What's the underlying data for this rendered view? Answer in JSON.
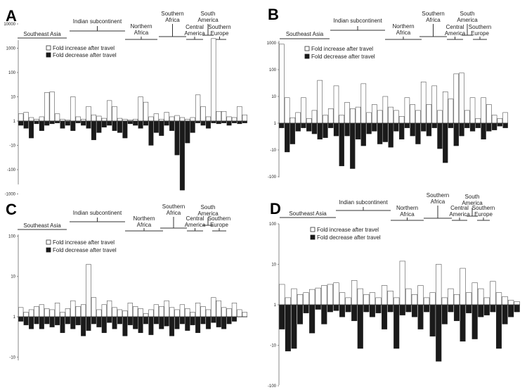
{
  "legend": {
    "increase": "Fold increase after travel",
    "decrease": "Fold decrease after travel"
  },
  "colors": {
    "increase_fill": "#ffffff",
    "decrease_fill": "#1a1a1a",
    "stroke": "#555555"
  },
  "chart_data": [
    {
      "type": "bar",
      "title": "A",
      "yscale": "log-diverging",
      "yticks": [
        "10000",
        "1000",
        "100",
        "10",
        "1",
        "-10",
        "-100",
        "-1000"
      ],
      "regions": [
        "Southeast Asia",
        "Indian subcontinent",
        "Northern Africa",
        "Southern Africa",
        "Central America",
        "South America",
        "Southern Europe"
      ],
      "series": [
        {
          "name": "Fold increase after travel",
          "values": [
            2,
            2.3,
            1.4,
            1.2,
            1.5,
            15,
            16,
            2,
            1.2,
            1.1,
            10,
            1.5,
            1.2,
            4,
            1.8,
            1.6,
            1.3,
            7,
            4,
            1.3,
            1.2,
            1.1,
            1.2,
            10,
            6,
            1.5,
            2,
            1.2,
            2.3,
            1.5,
            1.7,
            1.4,
            1.2,
            1.4,
            12,
            4,
            1.5,
            2500,
            2.5,
            2.5,
            1.5,
            1.4,
            4,
            1.8
          ]
        },
        {
          "name": "Fold decrease after travel",
          "values": [
            -1.5,
            -2,
            -5,
            -1.3,
            -2.5,
            -1.5,
            -1.3,
            -1.2,
            -2,
            -1.5,
            -2.5,
            -1.2,
            -1.5,
            -2,
            -6,
            -3,
            -1.8,
            -1.5,
            -2.5,
            -3,
            -5,
            -1.3,
            -1.5,
            -2,
            -1.5,
            -10,
            -3,
            -4,
            -1.5,
            -2.5,
            -25,
            -700,
            -8,
            -3,
            -1.2,
            -1.5,
            -2,
            -1.2,
            -1.3,
            -1.2,
            -1.5,
            -1.2,
            -1.3,
            -1.2
          ]
        }
      ]
    },
    {
      "type": "bar",
      "title": "B",
      "yscale": "log-diverging",
      "yticks": [
        "1000",
        "100",
        "10",
        "1",
        "-10",
        "-100"
      ],
      "regions": [
        "Southeast Asia",
        "Indian subcontinent",
        "Northern Africa",
        "Southern Africa",
        "Central America",
        "South America",
        "Southern Europe"
      ],
      "series": [
        {
          "name": "Fold increase after travel",
          "values": [
            900,
            9,
            1.6,
            2.5,
            9,
            1.5,
            3,
            40,
            2,
            3.5,
            25,
            2,
            6,
            3.5,
            4,
            30,
            2.5,
            5,
            3,
            10,
            4,
            3,
            1.8,
            9,
            5,
            3,
            35,
            5,
            25,
            3,
            15,
            8,
            70,
            75,
            3,
            9,
            1.5,
            9,
            5,
            2,
            1.5,
            2.5
          ]
        },
        {
          "name": "Fold decrease after travel",
          "values": [
            -1.5,
            -12,
            -6,
            -2,
            -1.5,
            -2,
            -2.5,
            -4,
            -3.5,
            -1.5,
            -3,
            -40,
            -3,
            -50,
            -4,
            -7,
            -2.5,
            -2,
            -6,
            -5,
            -8,
            -2,
            -4,
            -1.5,
            -3,
            -6,
            -2,
            -3,
            -1.5,
            -9,
            -30,
            -1.5,
            -7,
            -3,
            -1.5,
            -2,
            -1.5,
            -4,
            -2,
            -1.8,
            -1.3,
            -1.5
          ]
        }
      ]
    },
    {
      "type": "bar",
      "title": "C",
      "yscale": "log-diverging",
      "yticks": [
        "100",
        "10",
        "1",
        "-10"
      ],
      "regions": [
        "Southeast Asia",
        "Indian subcontinent",
        "Northern Africa",
        "Southern Africa",
        "Central America",
        "South America",
        "Southern Europe"
      ],
      "series": [
        {
          "name": "Fold increase after travel",
          "values": [
            1.7,
            1.3,
            1.5,
            1.8,
            2,
            1.6,
            1.5,
            2.2,
            1.3,
            1.6,
            2.5,
            1.8,
            2,
            20,
            3,
            1.5,
            2,
            2.5,
            1.7,
            1.5,
            1.4,
            2.2,
            1.8,
            1.6,
            1.2,
            1.5,
            2,
            1.8,
            2.5,
            1.7,
            1.5,
            2,
            1.6,
            1.3,
            2.2,
            1.8,
            1.5,
            3,
            2.5,
            1.7,
            1.6,
            2.2,
            1.5,
            1.3
          ]
        },
        {
          "name": "Fold decrease after travel",
          "values": [
            -1.3,
            -1.6,
            -2,
            -1.5,
            -2,
            -1.5,
            -1.8,
            -1.6,
            -2.5,
            -1.5,
            -2,
            -1.6,
            -3,
            -2.2,
            -1.5,
            -1.8,
            -2.5,
            -1.4,
            -2,
            -1.5,
            -3,
            -1.6,
            -2,
            -2.5,
            -1.5,
            -2.8,
            -1.5,
            -2,
            -1.7,
            -3,
            -2,
            -1.5,
            -2.2,
            -1.6,
            -2.5,
            -1.5,
            -2,
            -1.4,
            -1.8,
            -2,
            -1.5,
            -1.3
          ]
        }
      ]
    },
    {
      "type": "bar",
      "title": "D",
      "yscale": "log-diverging",
      "yticks": [
        "100",
        "10",
        "1",
        "-10",
        "-100"
      ],
      "regions": [
        "Southeast Asia",
        "Indian subcontinent",
        "Northern Africa",
        "Southern Africa",
        "Central America",
        "South America",
        "Southern Europe"
      ],
      "series": [
        {
          "name": "Fold increase after travel",
          "values": [
            3.2,
            1.5,
            2.5,
            1.8,
            2,
            2.4,
            2.6,
            3,
            3.2,
            3.5,
            2,
            1.5,
            4,
            2.5,
            1.8,
            2,
            1.5,
            3,
            2.2,
            1.5,
            12,
            2.5,
            1.8,
            3,
            1.5,
            2,
            10,
            1.5,
            2.5,
            1.8,
            8,
            2,
            3.5,
            2.5,
            1.5,
            3.8,
            2,
            1.6,
            1.3,
            1.2
          ]
        },
        {
          "name": "Fold decrease after travel",
          "values": [
            -4,
            -14,
            -12,
            -3,
            -1.6,
            -5,
            -1.3,
            -3,
            -1.5,
            -1.4,
            -2,
            -1.5,
            -2.5,
            -12,
            -1.5,
            -2,
            -1.6,
            -4,
            -1.5,
            -12,
            -1.8,
            -1.5,
            -2,
            -4,
            -1.5,
            -6,
            -25,
            -3,
            -1.5,
            -2.5,
            -8,
            -1.6,
            -7,
            -2,
            -1.8,
            -1.5,
            -12,
            -3,
            -2,
            -1.5
          ]
        }
      ]
    }
  ]
}
